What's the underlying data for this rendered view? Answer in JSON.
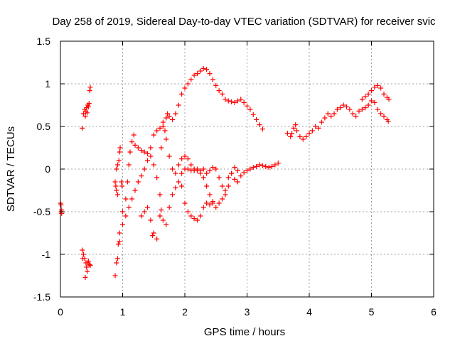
{
  "chart_data": {
    "type": "scatter",
    "title": "Day 258 of 2019, Sidereal Day-to-day VTEC variation (SDTVAR) for receiver svic",
    "xlabel": "GPS time / hours",
    "ylabel": "SDTVAR / TECUs",
    "xlim": [
      0,
      6
    ],
    "ylim": [
      -1.5,
      1.5
    ],
    "x_ticks": [
      0,
      1,
      2,
      3,
      4,
      5,
      6
    ],
    "x_tick_labels": [
      "0",
      "1",
      "2",
      "3",
      "4",
      "5",
      "6"
    ],
    "y_ticks": [
      -1.5,
      -1,
      -0.5,
      0,
      0.5,
      1,
      1.5
    ],
    "y_tick_labels": [
      "-1.5",
      "-1",
      "-0.5",
      "0",
      "0.5",
      "1",
      "1.5"
    ],
    "grid": true,
    "marker": "+",
    "marker_color": "#ff0000",
    "series": [
      {
        "name": "pts_start",
        "points": [
          [
            0.0,
            -0.4
          ],
          [
            0.01,
            -0.42
          ],
          [
            0.02,
            -0.48
          ],
          [
            0.02,
            -0.52
          ],
          [
            0.01,
            -0.5
          ]
        ]
      },
      {
        "name": "pts_early_low",
        "points": [
          [
            0.35,
            -0.95
          ],
          [
            0.37,
            -1.0
          ],
          [
            0.39,
            -1.05
          ],
          [
            0.41,
            -1.1
          ],
          [
            0.42,
            -1.15
          ],
          [
            0.43,
            -1.2
          ],
          [
            0.44,
            -1.1
          ],
          [
            0.45,
            -1.08
          ],
          [
            0.47,
            -1.12
          ],
          [
            0.4,
            -1.27
          ],
          [
            0.48,
            -1.13
          ],
          [
            0.36,
            -1.05
          ]
        ]
      },
      {
        "name": "pts_early_high",
        "points": [
          [
            0.35,
            0.48
          ],
          [
            0.37,
            0.65
          ],
          [
            0.39,
            0.7
          ],
          [
            0.41,
            0.68
          ],
          [
            0.42,
            0.72
          ],
          [
            0.44,
            0.75
          ],
          [
            0.46,
            0.77
          ],
          [
            0.47,
            0.92
          ],
          [
            0.48,
            0.96
          ],
          [
            0.4,
            0.62
          ],
          [
            0.43,
            0.66
          ],
          [
            0.45,
            0.73
          ]
        ]
      },
      {
        "name": "pts_cluster_09",
        "points": [
          [
            0.88,
            -0.15
          ],
          [
            0.89,
            -0.2
          ],
          [
            0.9,
            -0.25
          ],
          [
            0.88,
            -1.25
          ],
          [
            0.9,
            -1.1
          ],
          [
            0.92,
            -1.05
          ],
          [
            0.93,
            -0.88
          ],
          [
            0.95,
            -0.85
          ],
          [
            0.9,
            0.0
          ],
          [
            0.92,
            0.05
          ],
          [
            0.94,
            0.1
          ],
          [
            0.95,
            0.2
          ],
          [
            0.96,
            0.25
          ],
          [
            0.98,
            -0.15
          ],
          [
            0.99,
            -0.2
          ],
          [
            0.92,
            -0.3
          ]
        ]
      },
      {
        "name": "pts_lower_rise",
        "points": [
          [
            0.95,
            -0.75
          ],
          [
            1.0,
            -0.65
          ],
          [
            1.05,
            -0.55
          ],
          [
            1.1,
            -0.45
          ],
          [
            1.15,
            -0.35
          ],
          [
            1.2,
            -0.25
          ],
          [
            1.25,
            -0.15
          ],
          [
            1.3,
            -0.08
          ],
          [
            1.35,
            0.0
          ],
          [
            1.4,
            0.1
          ],
          [
            1.45,
            0.25
          ],
          [
            1.5,
            0.4
          ],
          [
            1.55,
            0.45
          ],
          [
            1.6,
            0.48
          ],
          [
            1.65,
            0.55
          ],
          [
            1.7,
            0.6
          ],
          [
            1.72,
            0.65
          ],
          [
            1.75,
            0.62
          ],
          [
            1.8,
            0.58
          ],
          [
            1.85,
            0.65
          ],
          [
            1.9,
            0.75
          ],
          [
            1.95,
            0.88
          ],
          [
            2.0,
            0.95
          ],
          [
            2.05,
            1.0
          ],
          [
            2.1,
            1.05
          ],
          [
            2.15,
            1.1
          ],
          [
            2.2,
            1.12
          ],
          [
            2.25,
            1.15
          ],
          [
            2.3,
            1.18
          ],
          [
            2.35,
            1.17
          ],
          [
            2.4,
            1.12
          ],
          [
            2.45,
            1.05
          ],
          [
            2.5,
            0.98
          ],
          [
            2.55,
            0.92
          ],
          [
            2.6,
            0.88
          ],
          [
            2.65,
            0.82
          ],
          [
            2.7,
            0.8
          ],
          [
            2.75,
            0.79
          ],
          [
            2.8,
            0.78
          ],
          [
            2.85,
            0.8
          ],
          [
            2.9,
            0.82
          ],
          [
            2.95,
            0.78
          ],
          [
            3.0,
            0.74
          ],
          [
            3.05,
            0.7
          ],
          [
            3.1,
            0.64
          ],
          [
            3.15,
            0.58
          ],
          [
            3.2,
            0.52
          ],
          [
            3.25,
            0.47
          ]
        ]
      },
      {
        "name": "pts_upper_branch",
        "points": [
          [
            1.0,
            -0.5
          ],
          [
            1.05,
            -0.35
          ],
          [
            1.08,
            -0.15
          ],
          [
            1.1,
            0.05
          ],
          [
            1.12,
            0.2
          ],
          [
            1.15,
            0.32
          ],
          [
            1.18,
            0.4
          ],
          [
            1.2,
            0.28
          ],
          [
            1.25,
            0.25
          ],
          [
            1.3,
            0.22
          ],
          [
            1.35,
            0.2
          ],
          [
            1.4,
            0.18
          ],
          [
            1.45,
            0.15
          ],
          [
            1.5,
            0.05
          ],
          [
            1.55,
            -0.1
          ],
          [
            1.6,
            -0.3
          ],
          [
            1.62,
            -0.48
          ],
          [
            1.65,
            -0.6
          ],
          [
            1.7,
            -0.65
          ],
          [
            1.75,
            -0.45
          ],
          [
            1.8,
            -0.3
          ],
          [
            1.85,
            -0.22
          ],
          [
            1.9,
            -0.15
          ],
          [
            1.95,
            -0.05
          ],
          [
            2.0,
            0.0
          ],
          [
            2.05,
            0.0
          ],
          [
            2.1,
            -0.02
          ],
          [
            2.15,
            -0.02
          ],
          [
            2.2,
            0.0
          ],
          [
            2.25,
            -0.02
          ],
          [
            2.3,
            0.0
          ],
          [
            2.35,
            -0.05
          ],
          [
            2.4,
            -0.02
          ],
          [
            2.45,
            0.02
          ],
          [
            2.5,
            0.0
          ],
          [
            2.55,
            -0.1
          ],
          [
            2.6,
            -0.2
          ],
          [
            2.65,
            -0.3
          ],
          [
            2.7,
            -0.2
          ],
          [
            2.75,
            -0.05
          ],
          [
            2.8,
            0.02
          ],
          [
            2.85,
            -0.02
          ],
          [
            2.9,
            -0.08
          ],
          [
            2.95,
            -0.04
          ],
          [
            3.0,
            -0.02
          ],
          [
            3.05,
            0.0
          ],
          [
            3.1,
            0.02
          ],
          [
            3.15,
            0.03
          ],
          [
            3.2,
            0.05
          ],
          [
            3.25,
            0.04
          ],
          [
            3.3,
            0.03
          ],
          [
            3.35,
            0.02
          ],
          [
            3.4,
            0.03
          ],
          [
            3.45,
            0.05
          ],
          [
            3.5,
            0.07
          ]
        ]
      },
      {
        "name": "pts_crossing",
        "points": [
          [
            1.4,
            -0.45
          ],
          [
            1.45,
            -0.6
          ],
          [
            1.48,
            -0.78
          ],
          [
            1.5,
            -0.75
          ],
          [
            1.55,
            -0.82
          ],
          [
            1.6,
            -0.55
          ],
          [
            1.62,
            0.25
          ],
          [
            1.65,
            0.5
          ],
          [
            1.68,
            0.45
          ],
          [
            1.7,
            0.35
          ],
          [
            1.75,
            0.15
          ],
          [
            1.8,
            0.0
          ],
          [
            1.85,
            -0.05
          ],
          [
            1.9,
            0.05
          ],
          [
            1.95,
            0.12
          ],
          [
            2.0,
            0.15
          ],
          [
            2.05,
            0.12
          ],
          [
            2.1,
            0.05
          ],
          [
            2.15,
            0.0
          ],
          [
            2.2,
            -0.02
          ],
          [
            2.25,
            -0.05
          ],
          [
            2.3,
            -0.1
          ],
          [
            2.35,
            -0.2
          ],
          [
            2.4,
            -0.3
          ],
          [
            2.45,
            -0.4
          ],
          [
            2.5,
            -0.45
          ],
          [
            2.55,
            -0.4
          ],
          [
            2.6,
            -0.35
          ],
          [
            2.65,
            -0.25
          ],
          [
            2.7,
            -0.1
          ],
          [
            2.75,
            -0.05
          ],
          [
            2.8,
            -0.12
          ],
          [
            2.85,
            -0.15
          ],
          [
            1.3,
            -0.55
          ],
          [
            1.35,
            -0.5
          ]
        ]
      },
      {
        "name": "pts_mid_dip",
        "points": [
          [
            1.95,
            -0.2
          ],
          [
            2.0,
            -0.4
          ],
          [
            2.05,
            -0.5
          ],
          [
            2.1,
            -0.55
          ],
          [
            2.15,
            -0.58
          ],
          [
            2.2,
            -0.6
          ],
          [
            2.25,
            -0.55
          ],
          [
            2.3,
            -0.45
          ],
          [
            2.35,
            -0.4
          ],
          [
            2.4,
            -0.42
          ],
          [
            2.45,
            -0.38
          ]
        ]
      },
      {
        "name": "pts_late",
        "points": [
          [
            3.65,
            0.42
          ],
          [
            3.7,
            0.38
          ],
          [
            3.72,
            0.42
          ],
          [
            3.75,
            0.48
          ],
          [
            3.78,
            0.52
          ],
          [
            3.8,
            0.45
          ],
          [
            3.85,
            0.38
          ],
          [
            3.9,
            0.35
          ],
          [
            3.95,
            0.38
          ],
          [
            4.0,
            0.42
          ],
          [
            4.05,
            0.45
          ],
          [
            4.1,
            0.5
          ],
          [
            4.15,
            0.48
          ],
          [
            4.2,
            0.55
          ],
          [
            4.25,
            0.6
          ],
          [
            4.3,
            0.65
          ],
          [
            4.35,
            0.62
          ],
          [
            4.4,
            0.65
          ],
          [
            4.45,
            0.7
          ],
          [
            4.5,
            0.72
          ],
          [
            4.55,
            0.75
          ],
          [
            4.6,
            0.73
          ],
          [
            4.65,
            0.7
          ],
          [
            4.7,
            0.65
          ],
          [
            4.75,
            0.62
          ],
          [
            4.8,
            0.68
          ],
          [
            4.85,
            0.7
          ],
          [
            4.9,
            0.72
          ],
          [
            4.95,
            0.75
          ],
          [
            5.0,
            0.8
          ],
          [
            5.05,
            0.78
          ],
          [
            5.1,
            0.7
          ],
          [
            5.15,
            0.65
          ],
          [
            5.2,
            0.62
          ],
          [
            5.25,
            0.58
          ],
          [
            5.27,
            0.56
          ]
        ]
      },
      {
        "name": "pts_late_high",
        "points": [
          [
            4.85,
            0.82
          ],
          [
            4.9,
            0.85
          ],
          [
            4.95,
            0.88
          ],
          [
            5.0,
            0.92
          ],
          [
            5.05,
            0.96
          ],
          [
            5.1,
            0.98
          ],
          [
            5.15,
            0.95
          ],
          [
            5.2,
            0.88
          ],
          [
            5.25,
            0.84
          ],
          [
            5.28,
            0.82
          ]
        ]
      }
    ]
  }
}
